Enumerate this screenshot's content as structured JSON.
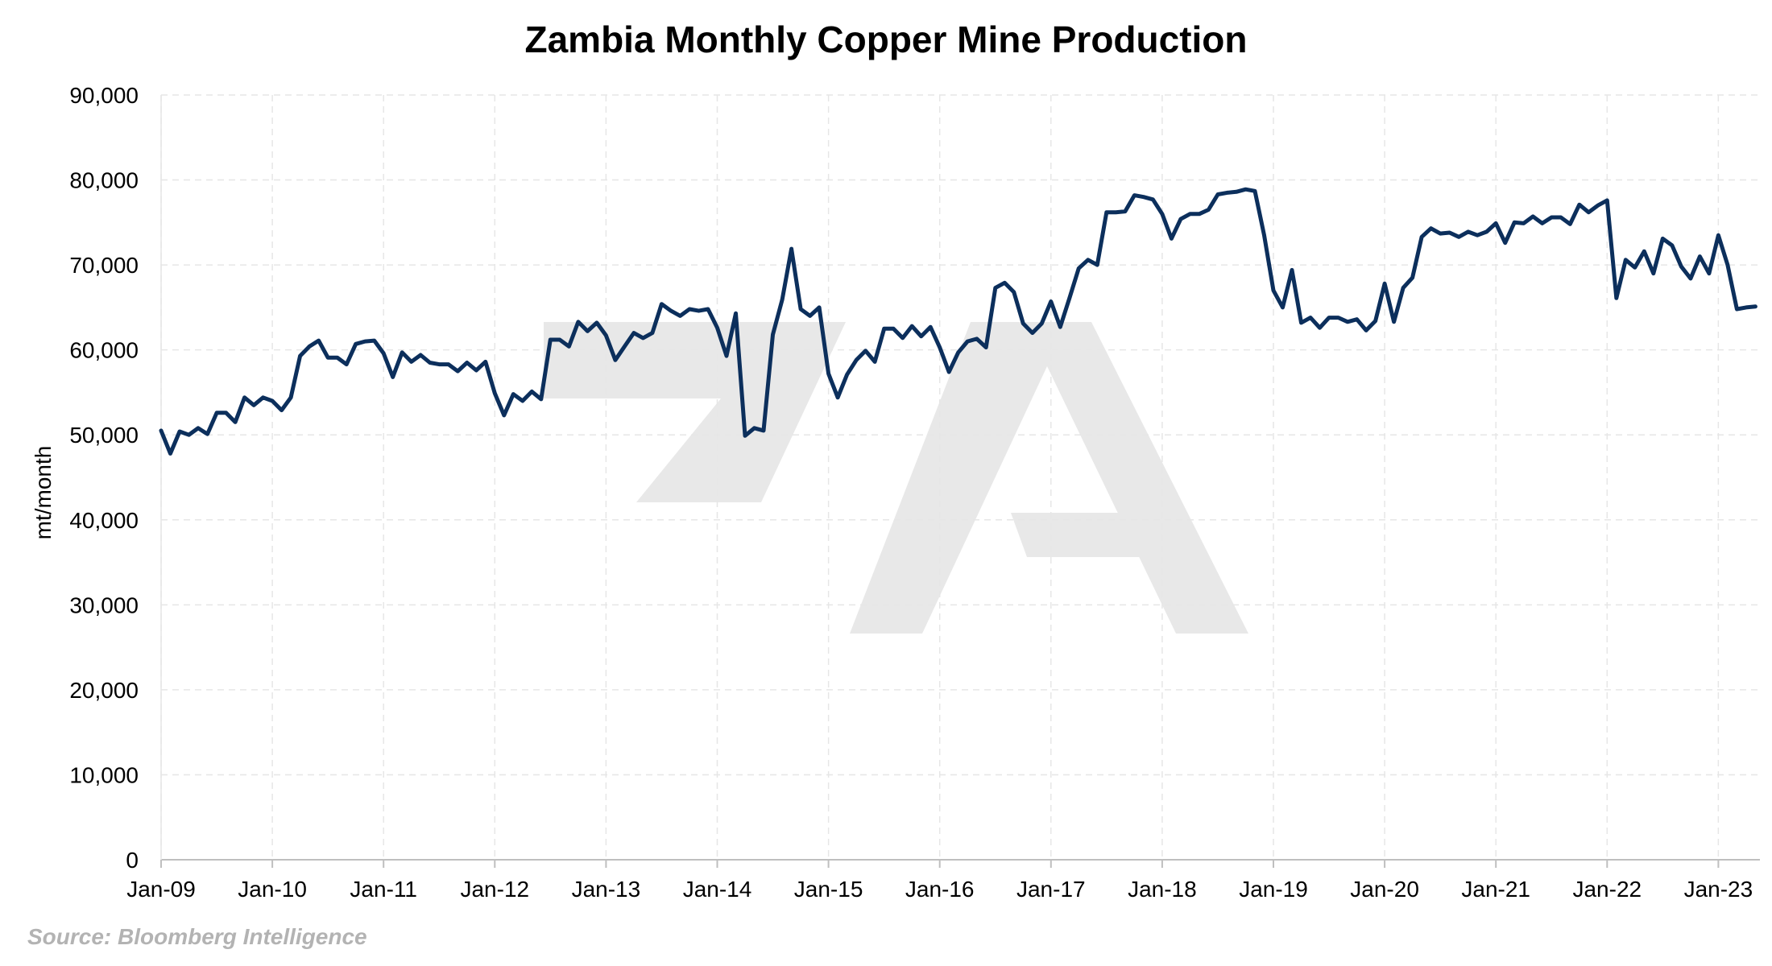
{
  "chart_data": {
    "type": "line",
    "title": "Zambia Monthly Copper Mine Production",
    "ylabel": "mt/month",
    "xlabel": "",
    "source": "Source: Bloomberg Intelligence",
    "ylim": [
      0,
      90000
    ],
    "grid": true,
    "legend": "none",
    "x_start": "2009-01",
    "x_end": "2023-05",
    "y_ticks": [
      0,
      10000,
      20000,
      30000,
      40000,
      50000,
      60000,
      70000,
      80000,
      90000
    ],
    "y_tick_labels": [
      "0",
      "10,000",
      "20,000",
      "30,000",
      "40,000",
      "50,000",
      "60,000",
      "70,000",
      "80,000",
      "90,000"
    ],
    "x_tick_labels": [
      "Jan-09",
      "Jan-10",
      "Jan-11",
      "Jan-12",
      "Jan-13",
      "Jan-14",
      "Jan-15",
      "Jan-16",
      "Jan-17",
      "Jan-18",
      "Jan-19",
      "Jan-20",
      "Jan-21",
      "Jan-22",
      "Jan-23"
    ],
    "series": [
      {
        "color": "#0c2f5c",
        "values": [
          50500,
          47800,
          50400,
          50000,
          50800,
          50100,
          52600,
          52600,
          51500,
          54400,
          53500,
          54400,
          54000,
          52900,
          54400,
          59300,
          60400,
          61100,
          59100,
          59100,
          58300,
          60700,
          61000,
          61100,
          59600,
          56800,
          59700,
          58600,
          59400,
          58500,
          58300,
          58300,
          57500,
          58500,
          57600,
          58600,
          54900,
          52300,
          54800,
          54000,
          55100,
          54200,
          61200,
          61200,
          60400,
          63300,
          62200,
          63200,
          61700,
          58800,
          60400,
          62000,
          61400,
          62000,
          65400,
          64600,
          64000,
          64800,
          64600,
          64800,
          62600,
          59300,
          64300,
          49900,
          50800,
          50500,
          61800,
          65900,
          71900,
          64800,
          64000,
          65000,
          57200,
          54400,
          57100,
          58800,
          59900,
          58600,
          62500,
          62500,
          61400,
          62800,
          61600,
          62700,
          60300,
          57400,
          59700,
          61000,
          61300,
          60300,
          67300,
          67900,
          66800,
          63100,
          62000,
          63100,
          65700,
          62700,
          66100,
          69600,
          70600,
          70000,
          76200,
          76200,
          76300,
          78200,
          78000,
          77700,
          76000,
          73100,
          75400,
          76000,
          76000,
          76500,
          78300,
          78500,
          78600,
          78900,
          78700,
          73500,
          67000,
          65000,
          69400,
          63200,
          63800,
          62600,
          63800,
          63800,
          63300,
          63600,
          62300,
          63400,
          67800,
          63300,
          67300,
          68500,
          73300,
          74300,
          73700,
          73800,
          73300,
          73900,
          73500,
          73900,
          74900,
          72600,
          75000,
          74900,
          75700,
          74900,
          75600,
          75600,
          74800,
          77100,
          76200,
          77000,
          77600,
          66100,
          70600,
          69700,
          71600,
          69000,
          73100,
          72300,
          69800,
          68400,
          71000,
          69000,
          73500,
          70000,
          64800,
          65000,
          65100
        ]
      }
    ]
  }
}
